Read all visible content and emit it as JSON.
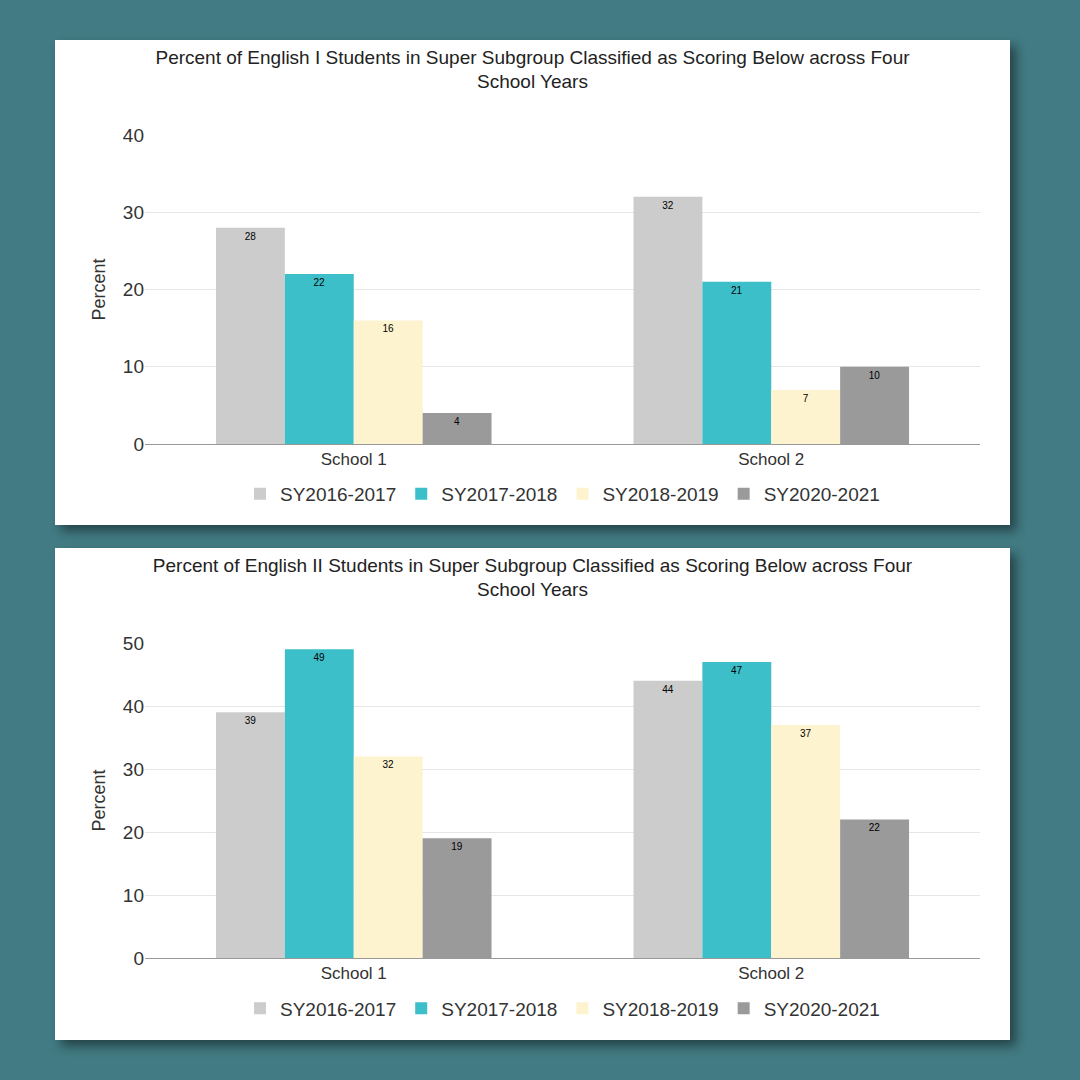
{
  "chart_data": [
    {
      "type": "bar",
      "title": "Percent of English I Students in Super Subgroup Classified as Scoring Below across Four School Years",
      "y_label": "Percent",
      "categories": [
        "School 1",
        "School 2"
      ],
      "series": [
        {
          "name": "SY2016-2017",
          "color": "#cccccc",
          "values": [
            28,
            32
          ]
        },
        {
          "name": "SY2017-2018",
          "color": "#3dbfca",
          "values": [
            22,
            21
          ]
        },
        {
          "name": "SY2018-2019",
          "color": "#fdf3cf",
          "values": [
            16,
            7
          ]
        },
        {
          "name": "SY2020-2021",
          "color": "#9a9a9a",
          "values": [
            4,
            10
          ]
        }
      ],
      "ylim": [
        0,
        40
      ],
      "yticks": [
        0,
        10,
        20,
        30,
        40
      ],
      "grid": true,
      "legend": "bottom",
      "data_labels": true
    },
    {
      "type": "bar",
      "title": "Percent of English II Students in Super Subgroup Classified as Scoring Below across Four School Years",
      "y_label": "Percent",
      "categories": [
        "School 1",
        "School 2"
      ],
      "series": [
        {
          "name": "SY2016-2017",
          "color": "#cccccc",
          "values": [
            39,
            44
          ]
        },
        {
          "name": "SY2017-2018",
          "color": "#3dbfca",
          "values": [
            49,
            47
          ]
        },
        {
          "name": "SY2018-2019",
          "color": "#fdf3cf",
          "values": [
            32,
            37
          ]
        },
        {
          "name": "SY2020-2021",
          "color": "#9a9a9a",
          "values": [
            19,
            22
          ]
        }
      ],
      "ylim": [
        0,
        50
      ],
      "yticks": [
        0,
        10,
        20,
        30,
        40,
        50
      ],
      "grid": true,
      "legend": "bottom",
      "data_labels": true
    }
  ]
}
